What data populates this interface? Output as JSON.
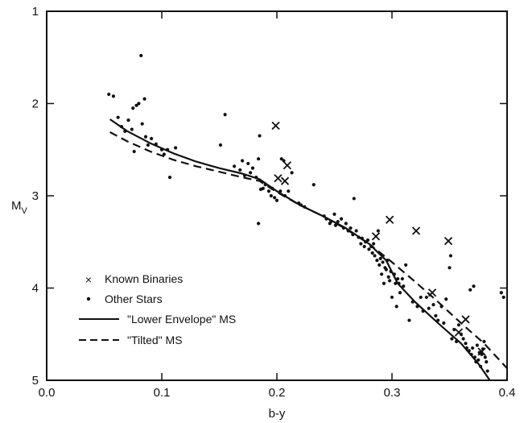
{
  "chart_data": {
    "type": "scatter",
    "xlabel": "b-y",
    "ylabel": "M",
    "ylabel_sub": "V",
    "xlim": [
      0.0,
      0.4
    ],
    "ylim": [
      1,
      5
    ],
    "y_inverted": true,
    "grid": false,
    "legend_position": "lower-left",
    "x_ticks": [
      0.0,
      0.1,
      0.2,
      0.3,
      0.4
    ],
    "x_tick_labels": [
      "0.0",
      "0.1",
      "0.2",
      "0.3",
      "0.4"
    ],
    "y_ticks": [
      1,
      2,
      3,
      4,
      5
    ],
    "y_tick_labels": [
      "1",
      "2",
      "3",
      "4",
      "5"
    ],
    "series": [
      {
        "name": "Known Binaries",
        "marker": "x",
        "points": [
          [
            0.199,
            2.24
          ],
          [
            0.201,
            2.81
          ],
          [
            0.207,
            2.84
          ],
          [
            0.209,
            2.67
          ],
          [
            0.286,
            3.44
          ],
          [
            0.298,
            3.26
          ],
          [
            0.321,
            3.38
          ],
          [
            0.349,
            3.49
          ],
          [
            0.335,
            4.05
          ],
          [
            0.358,
            4.48
          ],
          [
            0.364,
            4.34
          ],
          [
            0.378,
            4.69
          ]
        ]
      },
      {
        "name": "Other Stars",
        "marker": "dot",
        "points": [
          [
            0.054,
            1.9
          ],
          [
            0.058,
            1.92
          ],
          [
            0.062,
            2.15
          ],
          [
            0.065,
            2.25
          ],
          [
            0.068,
            2.3
          ],
          [
            0.071,
            2.18
          ],
          [
            0.074,
            2.28
          ],
          [
            0.075,
            2.05
          ],
          [
            0.078,
            2.02
          ],
          [
            0.08,
            2.0
          ],
          [
            0.082,
            1.48
          ],
          [
            0.085,
            1.95
          ],
          [
            0.083,
            2.22
          ],
          [
            0.076,
            2.52
          ],
          [
            0.086,
            2.36
          ],
          [
            0.088,
            2.45
          ],
          [
            0.091,
            2.38
          ],
          [
            0.095,
            2.44
          ],
          [
            0.1,
            2.5
          ],
          [
            0.102,
            2.55
          ],
          [
            0.105,
            2.5
          ],
          [
            0.107,
            2.8
          ],
          [
            0.112,
            2.48
          ],
          [
            0.151,
            2.45
          ],
          [
            0.155,
            2.12
          ],
          [
            0.163,
            2.68
          ],
          [
            0.168,
            2.72
          ],
          [
            0.17,
            2.62
          ],
          [
            0.172,
            2.78
          ],
          [
            0.175,
            2.65
          ],
          [
            0.177,
            2.75
          ],
          [
            0.179,
            2.7
          ],
          [
            0.182,
            2.8
          ],
          [
            0.184,
            2.6
          ],
          [
            0.185,
            2.35
          ],
          [
            0.186,
            2.93
          ],
          [
            0.184,
            3.3
          ],
          [
            0.188,
            2.92
          ],
          [
            0.19,
            2.88
          ],
          [
            0.193,
            2.95
          ],
          [
            0.195,
            3.0
          ],
          [
            0.196,
            2.92
          ],
          [
            0.198,
            3.02
          ],
          [
            0.2,
            3.05
          ],
          [
            0.203,
            2.95
          ],
          [
            0.204,
            2.6
          ],
          [
            0.206,
            2.62
          ],
          [
            0.207,
            3.0
          ],
          [
            0.21,
            2.95
          ],
          [
            0.213,
            2.75
          ],
          [
            0.219,
            3.08
          ],
          [
            0.221,
            3.1
          ],
          [
            0.224,
            3.12
          ],
          [
            0.232,
            2.88
          ],
          [
            0.241,
            3.22
          ],
          [
            0.243,
            3.25
          ],
          [
            0.246,
            3.3
          ],
          [
            0.247,
            3.28
          ],
          [
            0.25,
            3.2
          ],
          [
            0.251,
            3.32
          ],
          [
            0.253,
            3.28
          ],
          [
            0.256,
            3.25
          ],
          [
            0.258,
            3.35
          ],
          [
            0.26,
            3.3
          ],
          [
            0.262,
            3.38
          ],
          [
            0.264,
            3.35
          ],
          [
            0.266,
            3.42
          ],
          [
            0.267,
            3.03
          ],
          [
            0.269,
            3.38
          ],
          [
            0.271,
            3.45
          ],
          [
            0.273,
            3.52
          ],
          [
            0.274,
            3.46
          ],
          [
            0.276,
            3.55
          ],
          [
            0.277,
            3.5
          ],
          [
            0.279,
            3.48
          ],
          [
            0.28,
            3.58
          ],
          [
            0.282,
            3.55
          ],
          [
            0.283,
            3.62
          ],
          [
            0.284,
            3.52
          ],
          [
            0.285,
            3.65
          ],
          [
            0.287,
            3.7
          ],
          [
            0.288,
            3.38
          ],
          [
            0.289,
            3.75
          ],
          [
            0.29,
            3.68
          ],
          [
            0.291,
            3.85
          ],
          [
            0.292,
            3.72
          ],
          [
            0.293,
            3.95
          ],
          [
            0.294,
            3.78
          ],
          [
            0.295,
            3.8
          ],
          [
            0.296,
            3.7
          ],
          [
            0.297,
            3.88
          ],
          [
            0.298,
            3.92
          ],
          [
            0.299,
            3.82
          ],
          [
            0.3,
            4.1
          ],
          [
            0.302,
            3.85
          ],
          [
            0.303,
            3.95
          ],
          [
            0.304,
            4.2
          ],
          [
            0.305,
            3.9
          ],
          [
            0.306,
            3.95
          ],
          [
            0.307,
            4.05
          ],
          [
            0.309,
            3.9
          ],
          [
            0.31,
            3.98
          ],
          [
            0.312,
            3.75
          ],
          [
            0.315,
            4.35
          ],
          [
            0.318,
            4.15
          ],
          [
            0.322,
            4.2
          ],
          [
            0.325,
            4.1
          ],
          [
            0.327,
            4.25
          ],
          [
            0.33,
            4.1
          ],
          [
            0.332,
            4.22
          ],
          [
            0.336,
            4.18
          ],
          [
            0.338,
            4.3
          ],
          [
            0.34,
            4.35
          ],
          [
            0.343,
            4.2
          ],
          [
            0.345,
            4.38
          ],
          [
            0.347,
            4.12
          ],
          [
            0.35,
            3.78
          ],
          [
            0.351,
            3.65
          ],
          [
            0.352,
            4.55
          ],
          [
            0.354,
            4.45
          ],
          [
            0.356,
            4.58
          ],
          [
            0.358,
            4.4
          ],
          [
            0.36,
            4.5
          ],
          [
            0.362,
            4.55
          ],
          [
            0.364,
            4.6
          ],
          [
            0.365,
            4.65
          ],
          [
            0.367,
            4.68
          ],
          [
            0.368,
            4.02
          ],
          [
            0.369,
            4.72
          ],
          [
            0.37,
            4.65
          ],
          [
            0.371,
            3.98
          ],
          [
            0.372,
            4.75
          ],
          [
            0.373,
            4.8
          ],
          [
            0.374,
            4.62
          ],
          [
            0.375,
            4.78
          ],
          [
            0.376,
            4.7
          ],
          [
            0.377,
            4.85
          ],
          [
            0.378,
            4.72
          ],
          [
            0.379,
            4.66
          ],
          [
            0.38,
            4.58
          ],
          [
            0.381,
            4.75
          ],
          [
            0.382,
            4.8
          ],
          [
            0.383,
            4.9
          ],
          [
            0.395,
            4.05
          ],
          [
            0.397,
            4.1
          ]
        ]
      },
      {
        "name": "\"Lower Envelope\" MS",
        "style": "solid",
        "points": [
          [
            0.055,
            2.17
          ],
          [
            0.07,
            2.3
          ],
          [
            0.09,
            2.43
          ],
          [
            0.11,
            2.54
          ],
          [
            0.13,
            2.63
          ],
          [
            0.15,
            2.7
          ],
          [
            0.17,
            2.76
          ],
          [
            0.185,
            2.82
          ],
          [
            0.2,
            2.95
          ],
          [
            0.22,
            3.1
          ],
          [
            0.24,
            3.22
          ],
          [
            0.26,
            3.35
          ],
          [
            0.28,
            3.52
          ],
          [
            0.295,
            3.7
          ],
          [
            0.305,
            3.95
          ],
          [
            0.32,
            4.15
          ],
          [
            0.34,
            4.38
          ],
          [
            0.36,
            4.6
          ],
          [
            0.375,
            4.82
          ],
          [
            0.385,
            5.0
          ]
        ]
      },
      {
        "name": "\"Tilted\" MS",
        "style": "dashed",
        "points": [
          [
            0.055,
            2.31
          ],
          [
            0.07,
            2.41
          ],
          [
            0.09,
            2.52
          ],
          [
            0.11,
            2.61
          ],
          [
            0.13,
            2.68
          ],
          [
            0.15,
            2.74
          ],
          [
            0.17,
            2.8
          ],
          [
            0.185,
            2.84
          ],
          [
            0.2,
            2.96
          ],
          [
            0.22,
            3.1
          ],
          [
            0.24,
            3.22
          ],
          [
            0.26,
            3.36
          ],
          [
            0.28,
            3.52
          ],
          [
            0.3,
            3.72
          ],
          [
            0.32,
            3.93
          ],
          [
            0.34,
            4.15
          ],
          [
            0.36,
            4.38
          ],
          [
            0.38,
            4.6
          ],
          [
            0.4,
            4.87
          ]
        ]
      }
    ]
  }
}
